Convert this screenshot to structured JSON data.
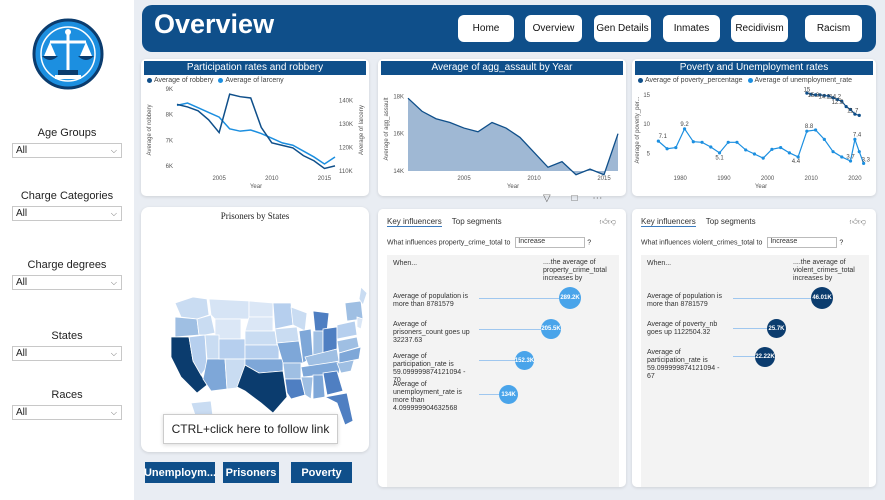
{
  "sidebar": {
    "slicers": [
      {
        "label": "Age Groups",
        "value": "All"
      },
      {
        "label": "Charge Categories",
        "value": "All"
      },
      {
        "label": "Charge degrees",
        "value": "All"
      },
      {
        "label": "States",
        "value": "All"
      },
      {
        "label": "Races",
        "value": "All"
      }
    ]
  },
  "header": {
    "title": "Overview",
    "nav": [
      "Home",
      "Overview",
      "Gen Details",
      "Inmates",
      "Recidivism",
      "Racism"
    ]
  },
  "chart_data": [
    {
      "type": "line",
      "title": "Participation rates and robbery",
      "series": [
        {
          "name": "Average of robbery",
          "x": [
            2001,
            2002,
            2003,
            2004,
            2005,
            2006,
            2007,
            2008,
            2009,
            2010,
            2011,
            2012,
            2013,
            2014,
            2015,
            2016
          ],
          "values": [
            8400,
            8300,
            8150,
            7800,
            7300,
            8800,
            8700,
            8650,
            7500,
            6900,
            6800,
            6700,
            6400,
            6200,
            5900,
            6000
          ]
        },
        {
          "name": "Average of larceny",
          "x": [
            2001,
            2002,
            2003,
            2004,
            2005,
            2006,
            2007,
            2008,
            2009,
            2010,
            2011,
            2012,
            2013,
            2014,
            2015,
            2016
          ],
          "values": [
            138000,
            139000,
            137000,
            135000,
            133000,
            128000,
            127000,
            127500,
            126000,
            124000,
            122000,
            121000,
            118500,
            116000,
            113000,
            116000
          ]
        }
      ],
      "xlabel": "Year",
      "ylabel": "Average of robbery",
      "ylabel_right": "Average of larceny",
      "y_ticks": [
        "6K",
        "7K",
        "8K",
        "9K"
      ],
      "y_ticks_right": [
        "110K",
        "120K",
        "130K",
        "140K"
      ],
      "x_ticks": [
        "2005",
        "2010",
        "2015"
      ]
    },
    {
      "type": "area",
      "title": "Average of agg_assault by Year",
      "x": [
        2001,
        2002,
        2003,
        2004,
        2005,
        2006,
        2007,
        2008,
        2009,
        2010,
        2011,
        2012,
        2013,
        2014,
        2015,
        2016
      ],
      "values": [
        17900,
        17200,
        16800,
        16600,
        16300,
        16100,
        16600,
        16300,
        15800,
        15000,
        14200,
        14500,
        13800,
        14100,
        13800,
        16000
      ],
      "xlabel": "Year",
      "ylabel": "Average of agg_assault",
      "y_ticks": [
        "14K",
        "16K",
        "18K"
      ],
      "x_ticks": [
        "2005",
        "2010",
        "2015"
      ]
    },
    {
      "type": "line",
      "title": "Poverty and Unemployment rates",
      "series": [
        {
          "name": "Average of poverty_percentage",
          "x": [
            2009,
            2010,
            2011,
            2012,
            2013,
            2014,
            2015,
            2016,
            2017,
            2018,
            2019,
            2020,
            2021
          ],
          "values": [
            15.3,
            15.1,
            15.0,
            15.0,
            14.9,
            14.8,
            14.5,
            14.2,
            13.9,
            13.0,
            12.5,
            11.7,
            11.5
          ]
        },
        {
          "name": "Average of unemployment_rate",
          "x": [
            1975,
            1977,
            1979,
            1981,
            1983,
            1985,
            1987,
            1989,
            1991,
            1993,
            1995,
            1997,
            1999,
            2001,
            2003,
            2005,
            2007,
            2009,
            2011,
            2013,
            2015,
            2017,
            2019,
            2020,
            2021,
            2022
          ],
          "values": [
            7.1,
            5.8,
            6.0,
            9.2,
            7.0,
            6.9,
            6.1,
            5.1,
            6.9,
            6.9,
            5.6,
            4.9,
            4.2,
            5.7,
            6.0,
            5.1,
            4.4,
            8.8,
            9.0,
            7.4,
            5.3,
            4.4,
            3.7,
            7.4,
            5.3,
            3.3
          ]
        }
      ],
      "labels": [
        "15",
        "15.3",
        "14.2",
        "14.2",
        "12.5",
        "11.7",
        "7.1",
        "9.2",
        "5.1",
        "4.4",
        "8.8",
        "7.4",
        "3.7",
        "3.3"
      ],
      "xlabel": "Year",
      "ylabel": "Average of poverty_per...",
      "y_ticks": [
        "5",
        "10",
        "15"
      ],
      "x_ticks": [
        "1980",
        "1990",
        "2000",
        "2010",
        "2020"
      ]
    }
  ],
  "map": {
    "title": "Prisoners by States"
  },
  "influencers": [
    {
      "tabs": [
        "Key influencers",
        "Top segments"
      ],
      "question": "What influences property_crime_total to",
      "select": "Increase",
      "when": "When...",
      "result_header": "....the average of property_crime_total increases by",
      "items": [
        {
          "text": "Average of population is more than 8781579",
          "value": "289.2K"
        },
        {
          "text": "Average of prisoners_count goes up 32237.63",
          "value": "205.5K"
        },
        {
          "text": "Average of participation_rate is 59.099999874121094 - 70",
          "value": "152.3K"
        },
        {
          "text": "Average of unemployment_rate is more than 4.099999904632568",
          "value": "134K"
        }
      ]
    },
    {
      "tabs": [
        "Key influencers",
        "Top segments"
      ],
      "question": "What influences violent_crimes_total to",
      "select": "Increase",
      "when": "When...",
      "result_header": "....the average of violent_crimes_total increases by",
      "items": [
        {
          "text": "Average of population is more than 8781579",
          "value": "46.01K"
        },
        {
          "text": "Average of poverty_nb goes up 1122504.32",
          "value": "25.7K"
        },
        {
          "text": "Average of participation_rate is 59.099999874121094 - 67",
          "value": "22.22K"
        }
      ]
    }
  ],
  "buttons": [
    "Unemploym...",
    "Prisoners",
    "Poverty"
  ],
  "tooltip": "CTRL+click here to follow link",
  "colors": {
    "navy": "#0f4f8a",
    "accent": "#1c8fe0",
    "dark": "#0b3c6e"
  }
}
